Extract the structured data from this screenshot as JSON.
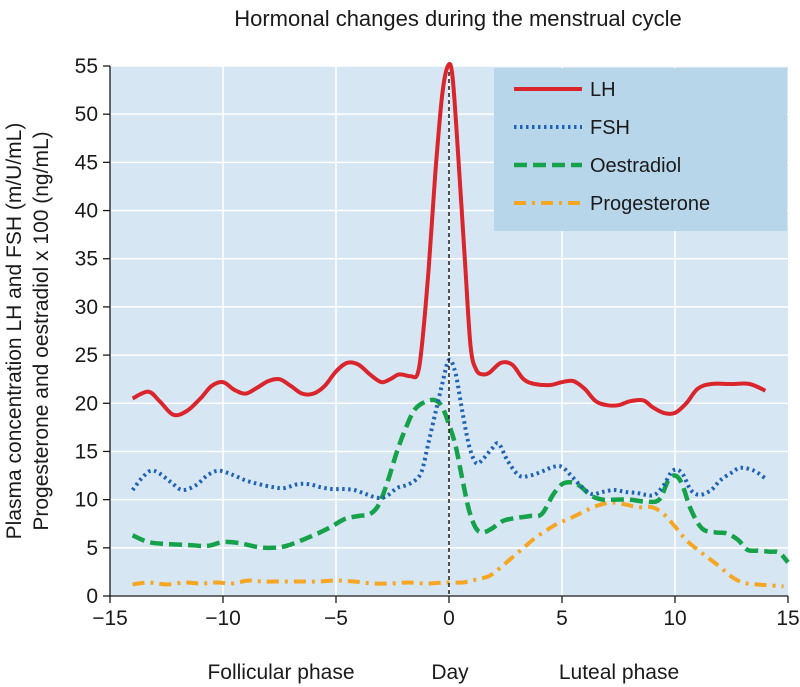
{
  "chart_data": {
    "type": "line",
    "title": "Hormonal changes during the menstrual cycle",
    "xlabel": "Day",
    "ylabel_lines": [
      "Plasma concentration LH and FSH (m/U/mL)",
      "Progesterone and oestradiol x 100 (ng/mL)"
    ],
    "phase_labels": [
      "Follicular phase",
      "Luteal phase"
    ],
    "xlim": [
      -15,
      15
    ],
    "ylim": [
      0,
      55
    ],
    "x_ticks": [
      -15,
      -10,
      -5,
      0,
      5,
      10,
      15
    ],
    "x_tick_labels": [
      "−15",
      "−10",
      "−5",
      "0",
      "5",
      "10",
      "15"
    ],
    "y_ticks": [
      0,
      5,
      10,
      15,
      20,
      25,
      30,
      35,
      40,
      45,
      50,
      55
    ],
    "y_tick_labels": [
      "0",
      "5",
      "10",
      "15",
      "20",
      "25",
      "30",
      "35",
      "40",
      "45",
      "50",
      "55"
    ],
    "grid": true,
    "legend_position": "top-right",
    "ovulation_line_x": 0,
    "series": [
      {
        "name": "LH",
        "color": "#d9252b",
        "style": "solid",
        "points": [
          [
            -14,
            20.5
          ],
          [
            -13.3,
            21.2
          ],
          [
            -12.8,
            20.2
          ],
          [
            -12.2,
            18.8
          ],
          [
            -11.6,
            19.2
          ],
          [
            -11,
            20.5
          ],
          [
            -10.5,
            21.8
          ],
          [
            -10,
            22.2
          ],
          [
            -9.5,
            21.4
          ],
          [
            -9,
            21
          ],
          [
            -8.5,
            21.6
          ],
          [
            -8,
            22.3
          ],
          [
            -7.5,
            22.5
          ],
          [
            -7,
            21.8
          ],
          [
            -6.5,
            21
          ],
          [
            -6,
            21
          ],
          [
            -5.5,
            21.8
          ],
          [
            -5,
            23.3
          ],
          [
            -4.5,
            24.2
          ],
          [
            -4,
            24
          ],
          [
            -3.5,
            23
          ],
          [
            -3,
            22.2
          ],
          [
            -2.6,
            22.5
          ],
          [
            -2.2,
            23
          ],
          [
            -1.7,
            22.8
          ],
          [
            -1.4,
            23
          ],
          [
            -1.2,
            26
          ],
          [
            -0.9,
            34
          ],
          [
            -0.6,
            44
          ],
          [
            -0.3,
            52
          ],
          [
            -0.05,
            55
          ],
          [
            0.15,
            54
          ],
          [
            0.4,
            46
          ],
          [
            0.7,
            35
          ],
          [
            0.95,
            26
          ],
          [
            1.2,
            23.5
          ],
          [
            1.5,
            23
          ],
          [
            1.8,
            23.2
          ],
          [
            2.3,
            24.2
          ],
          [
            2.8,
            24
          ],
          [
            3.3,
            22.5
          ],
          [
            3.8,
            22
          ],
          [
            4.5,
            21.9
          ],
          [
            5,
            22.2
          ],
          [
            5.5,
            22.3
          ],
          [
            6,
            21.5
          ],
          [
            6.5,
            20.2
          ],
          [
            7,
            19.8
          ],
          [
            7.5,
            19.8
          ],
          [
            8,
            20.2
          ],
          [
            8.6,
            20.3
          ],
          [
            9,
            19.6
          ],
          [
            9.5,
            19
          ],
          [
            10,
            19
          ],
          [
            10.5,
            20
          ],
          [
            11,
            21.5
          ],
          [
            11.6,
            22
          ],
          [
            12.5,
            22
          ],
          [
            13.3,
            22
          ],
          [
            14,
            21.3
          ]
        ]
      },
      {
        "name": "FSH",
        "color": "#1f63b5",
        "style": "dotted",
        "points": [
          [
            -14,
            11
          ],
          [
            -13.6,
            12.2
          ],
          [
            -13.2,
            13
          ],
          [
            -12.8,
            12.7
          ],
          [
            -12.3,
            11.8
          ],
          [
            -11.8,
            11
          ],
          [
            -11.2,
            11.5
          ],
          [
            -10.7,
            12.5
          ],
          [
            -10.2,
            13
          ],
          [
            -9.6,
            12.6
          ],
          [
            -9,
            12
          ],
          [
            -8.4,
            11.6
          ],
          [
            -7.8,
            11.3
          ],
          [
            -7.3,
            11.2
          ],
          [
            -6.7,
            11.6
          ],
          [
            -6.2,
            11.6
          ],
          [
            -5.7,
            11.3
          ],
          [
            -5.2,
            11.1
          ],
          [
            -4.7,
            11.1
          ],
          [
            -4.2,
            11
          ],
          [
            -3.7,
            10.6
          ],
          [
            -3.2,
            10.2
          ],
          [
            -2.8,
            10.3
          ],
          [
            -2.3,
            11.2
          ],
          [
            -1.9,
            11.5
          ],
          [
            -1.5,
            12
          ],
          [
            -1.2,
            13
          ],
          [
            -0.9,
            16
          ],
          [
            -0.6,
            19
          ],
          [
            -0.3,
            22
          ],
          [
            0,
            24.5
          ],
          [
            0.3,
            23
          ],
          [
            0.6,
            19
          ],
          [
            0.9,
            15.5
          ],
          [
            1.2,
            13.8
          ],
          [
            1.5,
            14.2
          ],
          [
            1.9,
            15.3
          ],
          [
            2.2,
            15.8
          ],
          [
            2.6,
            14
          ],
          [
            3.1,
            12.5
          ],
          [
            3.6,
            12.5
          ],
          [
            4.2,
            13
          ],
          [
            4.6,
            13.4
          ],
          [
            5,
            13.4
          ],
          [
            5.4,
            12.5
          ],
          [
            5.8,
            11.5
          ],
          [
            6.3,
            10.6
          ],
          [
            6.8,
            10.8
          ],
          [
            7.3,
            11
          ],
          [
            7.8,
            10.8
          ],
          [
            8.3,
            10.7
          ],
          [
            8.7,
            10.5
          ],
          [
            9.1,
            10.5
          ],
          [
            9.5,
            11.5
          ],
          [
            9.9,
            13
          ],
          [
            10.3,
            12.8
          ],
          [
            10.7,
            11
          ],
          [
            11.1,
            10.5
          ],
          [
            11.6,
            11
          ],
          [
            12,
            12
          ],
          [
            12.5,
            12.8
          ],
          [
            12.9,
            13.3
          ],
          [
            13.5,
            13
          ],
          [
            14,
            12.2
          ]
        ]
      },
      {
        "name": "Oestradiol",
        "color": "#15a24a",
        "style": "dashed",
        "points": [
          [
            -14,
            6.3
          ],
          [
            -13.3,
            5.6
          ],
          [
            -12.5,
            5.4
          ],
          [
            -11.6,
            5.3
          ],
          [
            -10.7,
            5.2
          ],
          [
            -10,
            5.6
          ],
          [
            -9.3,
            5.5
          ],
          [
            -8.5,
            5.1
          ],
          [
            -7.8,
            5
          ],
          [
            -7.2,
            5.2
          ],
          [
            -6.5,
            5.8
          ],
          [
            -5.8,
            6.5
          ],
          [
            -5.2,
            7.2
          ],
          [
            -4.6,
            8
          ],
          [
            -4,
            8.3
          ],
          [
            -3.5,
            8.5
          ],
          [
            -3.1,
            9.5
          ],
          [
            -2.7,
            12
          ],
          [
            -2.3,
            15
          ],
          [
            -1.9,
            17.5
          ],
          [
            -1.5,
            19.4
          ],
          [
            -1,
            20.2
          ],
          [
            -0.6,
            20.3
          ],
          [
            -0.3,
            19.6
          ],
          [
            0,
            17.8
          ],
          [
            0.3,
            15.5
          ],
          [
            0.6,
            12
          ],
          [
            0.9,
            8.8
          ],
          [
            1.2,
            7
          ],
          [
            1.5,
            6.6
          ],
          [
            1.9,
            7
          ],
          [
            2.4,
            7.8
          ],
          [
            3,
            8.1
          ],
          [
            3.6,
            8.3
          ],
          [
            4.1,
            8.5
          ],
          [
            4.6,
            10.5
          ],
          [
            5,
            11.6
          ],
          [
            5.4,
            11.8
          ],
          [
            5.8,
            11.4
          ],
          [
            6.3,
            10.4
          ],
          [
            6.8,
            10
          ],
          [
            7.4,
            10
          ],
          [
            8,
            10
          ],
          [
            8.7,
            9.8
          ],
          [
            9.3,
            10
          ],
          [
            9.7,
            12
          ],
          [
            10,
            12.5
          ],
          [
            10.3,
            11.7
          ],
          [
            10.7,
            9
          ],
          [
            11.2,
            7
          ],
          [
            11.8,
            6.6
          ],
          [
            12.3,
            6.5
          ],
          [
            12.8,
            5.8
          ],
          [
            13.2,
            4.8
          ],
          [
            13.7,
            4.7
          ],
          [
            14.2,
            4.6
          ],
          [
            14.6,
            4.5
          ],
          [
            15,
            3.5
          ]
        ]
      },
      {
        "name": "Progesterone",
        "color": "#f5a623",
        "style": "dashdot",
        "points": [
          [
            -14,
            1.2
          ],
          [
            -13.3,
            1.4
          ],
          [
            -12.5,
            1.2
          ],
          [
            -11.7,
            1.4
          ],
          [
            -11,
            1.3
          ],
          [
            -10.3,
            1.4
          ],
          [
            -9.6,
            1.3
          ],
          [
            -8.9,
            1.6
          ],
          [
            -8.2,
            1.5
          ],
          [
            -7.4,
            1.5
          ],
          [
            -6.6,
            1.5
          ],
          [
            -5.8,
            1.5
          ],
          [
            -5,
            1.6
          ],
          [
            -4.2,
            1.5
          ],
          [
            -3.4,
            1.3
          ],
          [
            -2.6,
            1.3
          ],
          [
            -1.8,
            1.4
          ],
          [
            -1,
            1.3
          ],
          [
            -0.2,
            1.4
          ],
          [
            0.6,
            1.4
          ],
          [
            1.2,
            1.7
          ],
          [
            1.8,
            2.1
          ],
          [
            2.3,
            3
          ],
          [
            2.8,
            4
          ],
          [
            3.3,
            5
          ],
          [
            3.8,
            6
          ],
          [
            4.3,
            6.8
          ],
          [
            4.8,
            7.5
          ],
          [
            5.4,
            8.1
          ],
          [
            6,
            8.8
          ],
          [
            6.6,
            9.4
          ],
          [
            7.2,
            9.7
          ],
          [
            7.8,
            9.5
          ],
          [
            8.4,
            9.2
          ],
          [
            9,
            9.2
          ],
          [
            9.5,
            8.5
          ],
          [
            10,
            7.2
          ],
          [
            10.5,
            5.8
          ],
          [
            11,
            4.8
          ],
          [
            11.5,
            3.9
          ],
          [
            12,
            3
          ],
          [
            12.5,
            2
          ],
          [
            13,
            1.4
          ],
          [
            13.6,
            1.2
          ],
          [
            14.2,
            1.1
          ],
          [
            14.8,
            1
          ]
        ]
      }
    ]
  }
}
